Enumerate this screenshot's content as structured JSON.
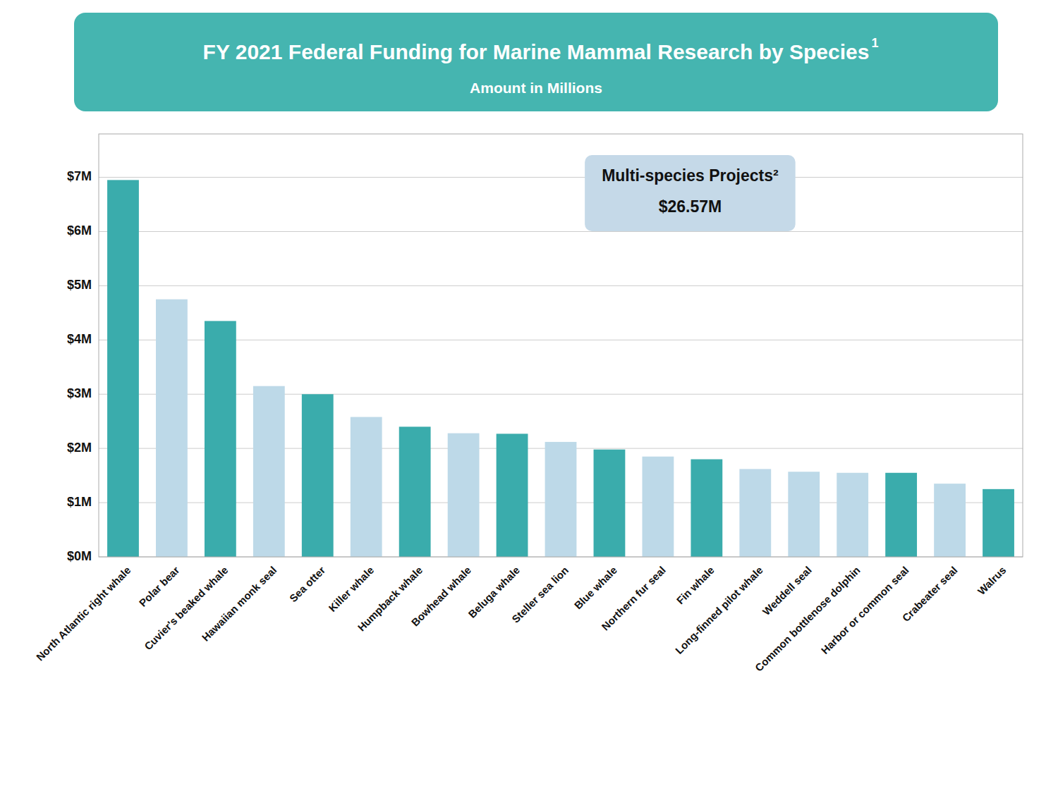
{
  "chart_data": {
    "type": "bar",
    "title": "FY 2021 Federal Funding for Marine Mammal Research by Species",
    "title_superscript": "1",
    "subtitle": "Amount in Millions",
    "categories": [
      "North Atlantic right whale",
      "Polar bear",
      "Cuvier's beaked whale",
      "Hawaiian monk seal",
      "Sea otter",
      "Killer whale",
      "Humpback whale",
      "Bowhead whale",
      "Beluga whale",
      "Steller sea lion",
      "Blue whale",
      "Northern fur seal",
      "Fin whale",
      "Long-finned pilot whale",
      "Weddell seal",
      "Common bottlenose dolphin",
      "Harbor or common seal",
      "Crabeater seal",
      "Walrus"
    ],
    "values": [
      6.95,
      4.75,
      4.35,
      3.15,
      3.0,
      2.58,
      2.4,
      2.28,
      2.27,
      2.12,
      1.98,
      1.85,
      1.8,
      1.62,
      1.57,
      1.55,
      1.55,
      1.35,
      1.25
    ],
    "colors": [
      "#3AACAC",
      "#BDD9E8",
      "#3AACAC",
      "#BDD9E8",
      "#3AACAC",
      "#BDD9E8",
      "#3AACAC",
      "#BDD9E8",
      "#3AACAC",
      "#BDD9E8",
      "#3AACAC",
      "#BDD9E8",
      "#3AACAC",
      "#BDD9E8",
      "#BDD9E8",
      "#BDD9E8",
      "#3AACAC",
      "#BDD9E8",
      "#3AACAC"
    ],
    "annotations": [
      "Multi-species Projects²",
      "$26.57M"
    ],
    "ylim": [
      0,
      7.8
    ],
    "yticks": [
      {
        "value": 0,
        "label": "$0M"
      },
      {
        "value": 1,
        "label": "$1M"
      },
      {
        "value": 2,
        "label": "$2M"
      },
      {
        "value": 3,
        "label": "$3M"
      },
      {
        "value": 4,
        "label": "$4M"
      },
      {
        "value": 5,
        "label": "$5M"
      },
      {
        "value": 6,
        "label": "$6M"
      },
      {
        "value": 7,
        "label": "$7M"
      }
    ],
    "grid": true
  }
}
